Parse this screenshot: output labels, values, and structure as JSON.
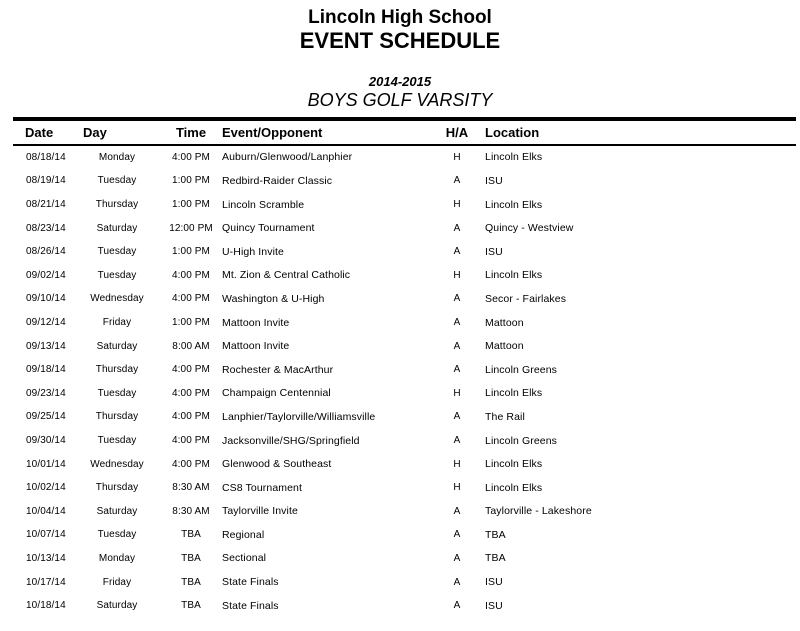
{
  "header": {
    "school": "Lincoln High School",
    "doc_title": "EVENT SCHEDULE",
    "season": "2014-2015",
    "team": "BOYS GOLF VARSITY"
  },
  "schedule": {
    "columns": {
      "date": "Date",
      "day": "Day",
      "time": "Time",
      "event": "Event/Opponent",
      "ha": "H/A",
      "location": "Location"
    },
    "rows": [
      {
        "date": "08/18/14",
        "day": "Monday",
        "time": "4:00 PM",
        "event": "Auburn/Glenwood/Lanphier",
        "ha": "H",
        "location": "Lincoln Elks"
      },
      {
        "date": "08/19/14",
        "day": "Tuesday",
        "time": "1:00 PM",
        "event": "Redbird-Raider Classic",
        "ha": "A",
        "location": "ISU"
      },
      {
        "date": "08/21/14",
        "day": "Thursday",
        "time": "1:00 PM",
        "event": "Lincoln Scramble",
        "ha": "H",
        "location": "Lincoln Elks"
      },
      {
        "date": "08/23/14",
        "day": "Saturday",
        "time": "12:00 PM",
        "event": "Quincy Tournament",
        "ha": "A",
        "location": "Quincy - Westview"
      },
      {
        "date": "08/26/14",
        "day": "Tuesday",
        "time": "1:00 PM",
        "event": "U-High Invite",
        "ha": "A",
        "location": "ISU"
      },
      {
        "date": "09/02/14",
        "day": "Tuesday",
        "time": "4:00 PM",
        "event": "Mt. Zion & Central Catholic",
        "ha": "H",
        "location": "Lincoln Elks"
      },
      {
        "date": "09/10/14",
        "day": "Wednesday",
        "time": "4:00 PM",
        "event": "Washington & U-High",
        "ha": "A",
        "location": "Secor - Fairlakes"
      },
      {
        "date": "09/12/14",
        "day": "Friday",
        "time": "1:00 PM",
        "event": "Mattoon Invite",
        "ha": "A",
        "location": "Mattoon"
      },
      {
        "date": "09/13/14",
        "day": "Saturday",
        "time": "8:00 AM",
        "event": "Mattoon Invite",
        "ha": "A",
        "location": "Mattoon"
      },
      {
        "date": "09/18/14",
        "day": "Thursday",
        "time": "4:00 PM",
        "event": "Rochester & MacArthur",
        "ha": "A",
        "location": "Lincoln Greens"
      },
      {
        "date": "09/23/14",
        "day": "Tuesday",
        "time": "4:00 PM",
        "event": "Champaign Centennial",
        "ha": "H",
        "location": "Lincoln Elks"
      },
      {
        "date": "09/25/14",
        "day": "Thursday",
        "time": "4:00 PM",
        "event": "Lanphier/Taylorville/Williamsville",
        "ha": "A",
        "location": "The Rail"
      },
      {
        "date": "09/30/14",
        "day": "Tuesday",
        "time": "4:00 PM",
        "event": "Jacksonville/SHG/Springfield",
        "ha": "A",
        "location": "Lincoln Greens"
      },
      {
        "date": "10/01/14",
        "day": "Wednesday",
        "time": "4:00 PM",
        "event": "Glenwood & Southeast",
        "ha": "H",
        "location": "Lincoln Elks"
      },
      {
        "date": "10/02/14",
        "day": "Thursday",
        "time": "8:30 AM",
        "event": "CS8 Tournament",
        "ha": "H",
        "location": "Lincoln Elks"
      },
      {
        "date": "10/04/14",
        "day": "Saturday",
        "time": "8:30 AM",
        "event": "Taylorville Invite",
        "ha": "A",
        "location": "Taylorville - Lakeshore"
      },
      {
        "date": "10/07/14",
        "day": "Tuesday",
        "time": "TBA",
        "event": "Regional",
        "ha": "A",
        "location": "TBA"
      },
      {
        "date": "10/13/14",
        "day": "Monday",
        "time": "TBA",
        "event": "Sectional",
        "ha": "A",
        "location": "TBA"
      },
      {
        "date": "10/17/14",
        "day": "Friday",
        "time": "TBA",
        "event": "State Finals",
        "ha": "A",
        "location": "ISU"
      },
      {
        "date": "10/18/14",
        "day": "Saturday",
        "time": "TBA",
        "event": "State Finals",
        "ha": "A",
        "location": "ISU"
      }
    ]
  },
  "colors": {
    "text": "#000000",
    "background": "#ffffff",
    "rule": "#000000"
  }
}
